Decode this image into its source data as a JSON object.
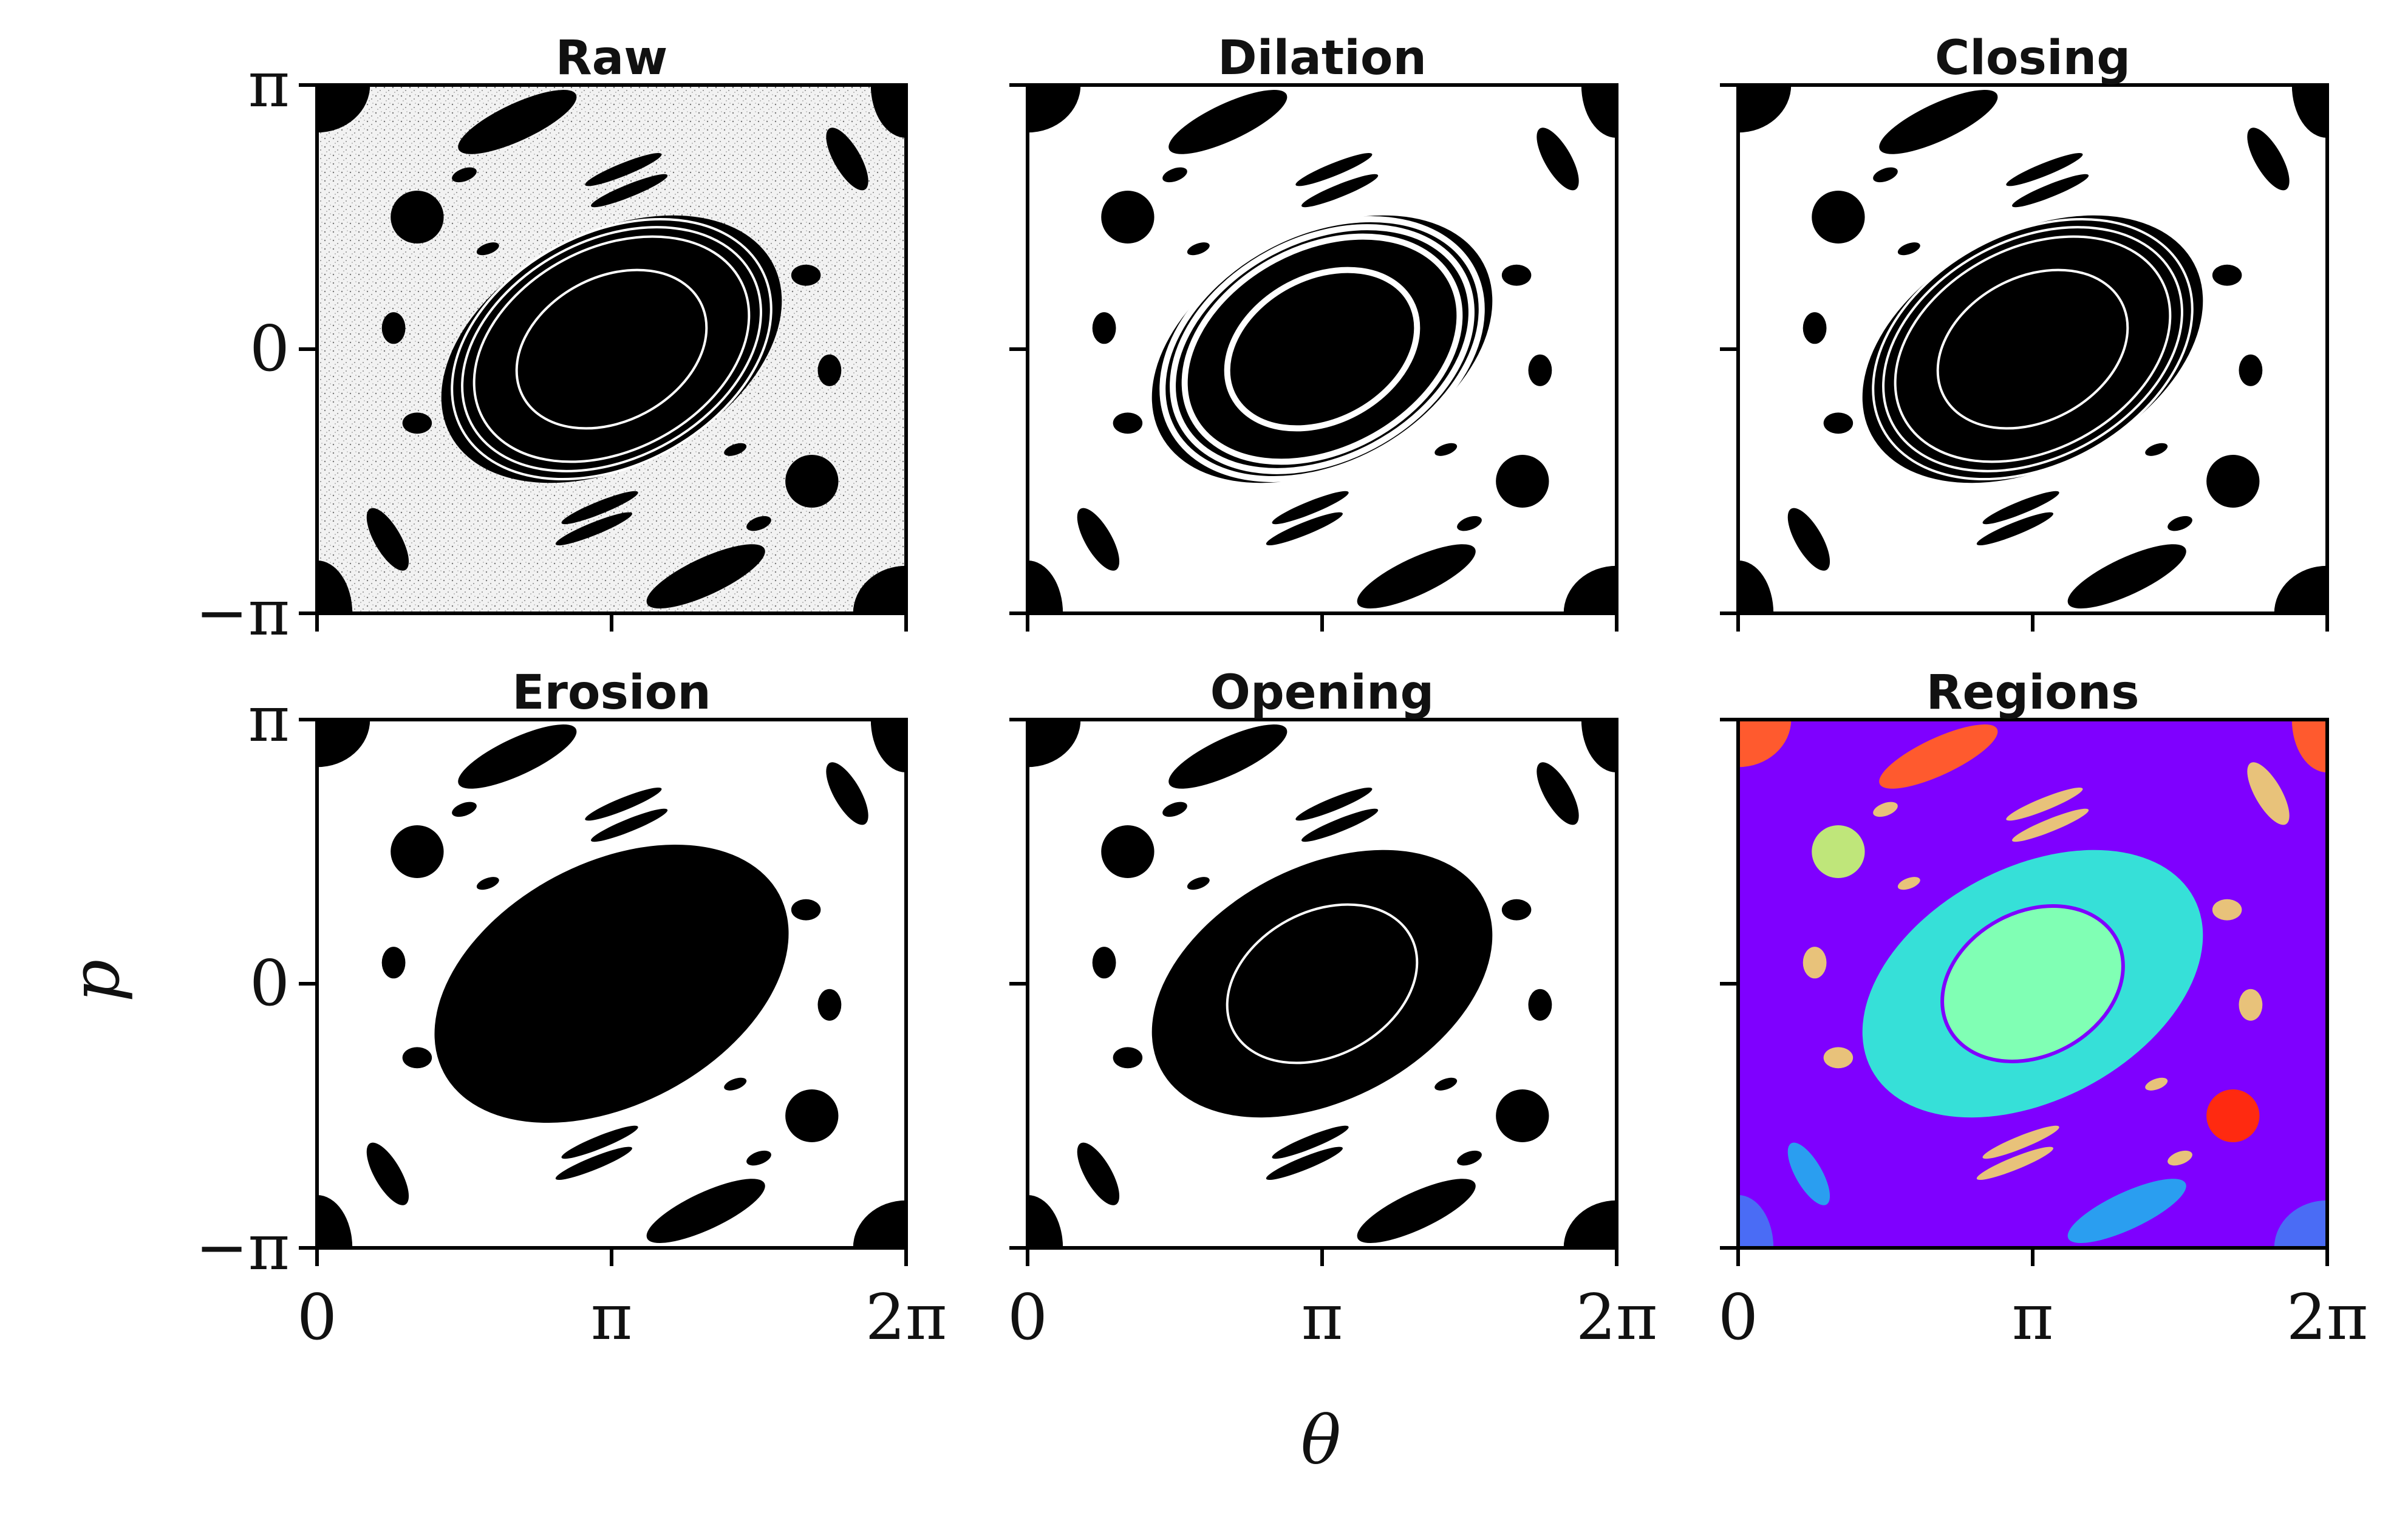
{
  "chart_data": {
    "type": "heatmap",
    "description_domain": "phase-space portrait of standard map, morphological processing stages",
    "xlabel": "θ",
    "ylabel": "p",
    "xlim": [
      "0",
      "2π"
    ],
    "ylim": [
      "−π",
      "π"
    ],
    "x_ticks": [
      "0",
      "π",
      "2π"
    ],
    "y_ticks": [
      "−π",
      "0",
      "π"
    ],
    "panels": [
      {
        "title": "Raw",
        "style": "raw"
      },
      {
        "title": "Dilation",
        "style": "dilation"
      },
      {
        "title": "Closing",
        "style": "closing"
      },
      {
        "title": "Erosion",
        "style": "erosion"
      },
      {
        "title": "Opening",
        "style": "opening"
      },
      {
        "title": "Regions",
        "style": "regions"
      }
    ],
    "region_colors": [
      "#7f00ff",
      "#36e0d8",
      "#80ffb4",
      "#bfe67a",
      "#e8c27a",
      "#ff5a2e",
      "#4a6cf5",
      "#2a9ef0",
      "#ff2a10"
    ]
  }
}
